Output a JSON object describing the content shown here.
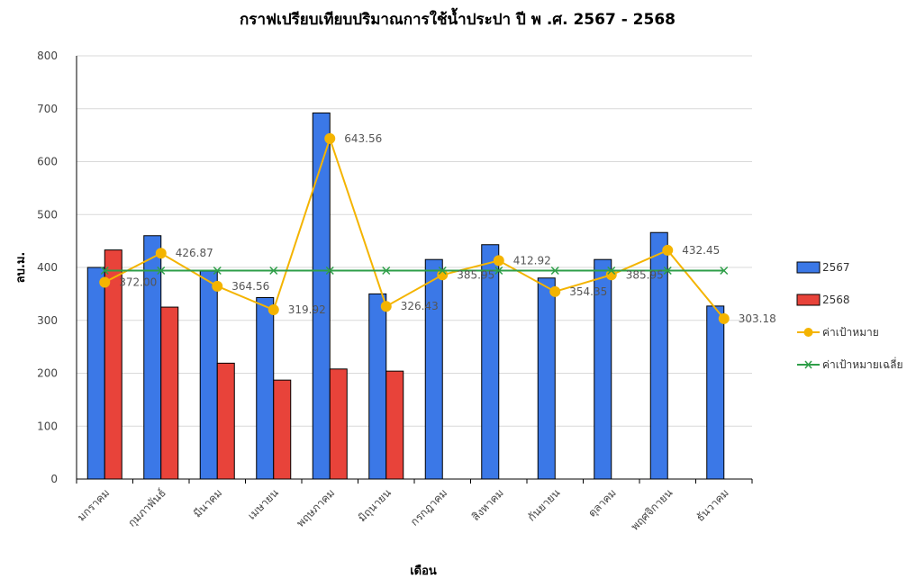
{
  "chart_data": {
    "type": "bar",
    "title": "กราฟเปรียบเทียบปริมาณการใช้น้ำประปา ปี พ .ศ. 2567 - 2568",
    "xlabel": "เดือน",
    "ylabel": "ลบ.ม.",
    "ylim": [
      0,
      800
    ],
    "yticks": [
      0,
      100,
      200,
      300,
      400,
      500,
      600,
      700,
      800
    ],
    "grid": true,
    "legend_position": "right",
    "categories": [
      "มกราคม",
      "กุมภาพันธ์",
      "มีนาคม",
      "เมษายน",
      "พฤษภาคม",
      "มิถุนายน",
      "กรกฎาคม",
      "สิงหาคม",
      "กันยายน",
      "ตุลาคม",
      "พฤศจิกายน",
      "ธันวาคม"
    ],
    "series": [
      {
        "name": "2567",
        "kind": "bar",
        "color": "#3b78e7",
        "values": [
          400,
          460,
          393,
          343,
          692,
          350,
          415,
          443,
          380,
          415,
          466,
          327
        ]
      },
      {
        "name": "2568",
        "kind": "bar",
        "color": "#e8433a",
        "values": [
          433,
          325,
          219,
          187,
          208,
          204,
          null,
          null,
          null,
          null,
          null,
          null
        ]
      },
      {
        "name": "ค่าเป้าหมาย",
        "kind": "line",
        "color": "#f4b400",
        "marker": "circle",
        "values": [
          372.0,
          426.87,
          364.56,
          319.92,
          643.56,
          326.43,
          385.95,
          412.92,
          354.35,
          385.95,
          432.45,
          303.18
        ],
        "labels": [
          "372.00",
          "426.87",
          "364.56",
          "319.92",
          "643.56",
          "326.43",
          "385.95",
          "412.92",
          "354.35",
          "385.95",
          "432.45",
          "303.18"
        ]
      },
      {
        "name": "ค่าเป้าหมายเฉลี่ย",
        "kind": "line",
        "color": "#2e9e48",
        "marker": "x",
        "values": [
          394,
          394,
          394,
          394,
          394,
          394,
          394,
          394,
          394,
          394,
          394,
          394
        ]
      }
    ]
  }
}
